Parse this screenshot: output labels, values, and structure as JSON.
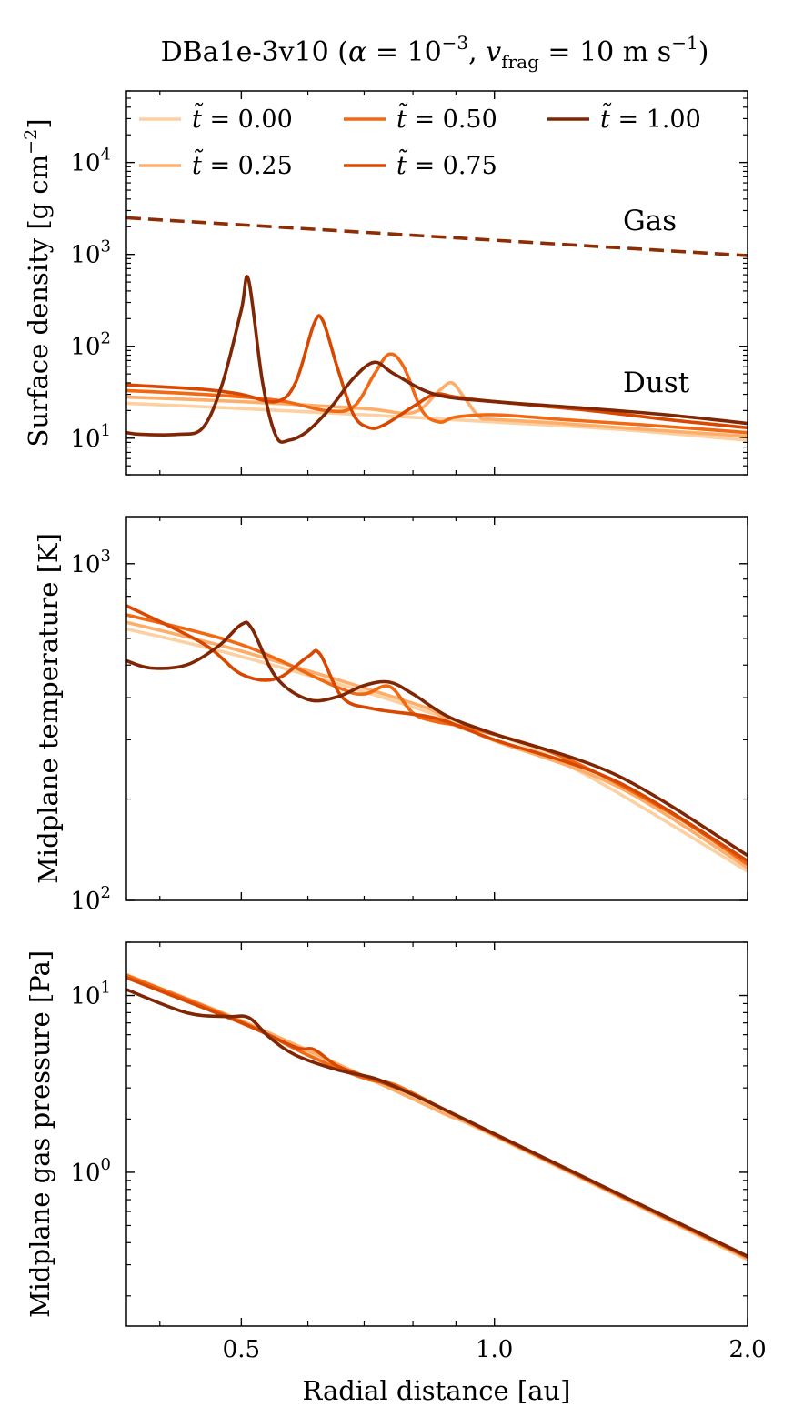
{
  "title": "DBa1e-3v10 (α = 10⁻³, v_frag = 10 m s⁻¹)",
  "title_parts": {
    "main": "DBa1e-3v10 (",
    "alpha": "α",
    "alpha_eq": " = 10",
    "alpha_exp": "−3",
    "sep": ", ",
    "v": "v",
    "v_sub": "frag",
    "v_eq": " = 10 m s",
    "v_exp": "−1",
    "close": ")"
  },
  "colors": {
    "t000": "#fdd0a2",
    "t025": "#fdae6b",
    "t050": "#f16913",
    "t075": "#d94801",
    "t100": "#7f2704",
    "gas": "#8c2d04"
  },
  "legend": [
    {
      "symbol": "t̃",
      "eq": " = ",
      "value": "0.00",
      "color_key": "t000"
    },
    {
      "symbol": "t̃",
      "eq": " = ",
      "value": "0.25",
      "color_key": "t025"
    },
    {
      "symbol": "t̃",
      "eq": " = ",
      "value": "0.50",
      "color_key": "t050"
    },
    {
      "symbol": "t̃",
      "eq": " = ",
      "value": "0.75",
      "color_key": "t075"
    },
    {
      "symbol": "t̃",
      "eq": " = ",
      "value": "1.00",
      "color_key": "t100"
    }
  ],
  "annotations": {
    "gas": "Gas",
    "dust": "Dust"
  },
  "xaxis": {
    "label": "Radial distance [au]",
    "scale": "log",
    "range": [
      0.365,
      2.0
    ],
    "ticks": [
      {
        "value": 0.5,
        "label": "0.5"
      },
      {
        "value": 1.0,
        "label": "1.0"
      },
      {
        "value": 2.0,
        "label": "2.0"
      }
    ]
  },
  "chart_data": [
    {
      "type": "line",
      "ylabel": "Surface density [g cm⁻²]",
      "ylabel_parts": {
        "main": "Surface density [g cm",
        "exp": "−2",
        "close": "]"
      },
      "yscale": "log",
      "ylim": [
        4.0,
        60000
      ],
      "yticks": [
        {
          "value": 10,
          "base": "10",
          "exp": "1"
        },
        {
          "value": 100,
          "base": "10",
          "exp": "2"
        },
        {
          "value": 1000,
          "base": "10",
          "exp": "3"
        },
        {
          "value": 10000,
          "base": "10",
          "exp": "4"
        }
      ],
      "series": [
        {
          "name": "Gas",
          "color_key": "gas",
          "dashed": true,
          "x": [
            0.365,
            2.0
          ],
          "values": [
            2500,
            970
          ]
        },
        {
          "name": "t̃ = 0.00",
          "color_key": "t000",
          "x": [
            0.365,
            0.5,
            0.7,
            1.0,
            1.4,
            2.0
          ],
          "values": [
            24,
            21,
            18,
            15,
            12.5,
            9.5
          ]
        },
        {
          "name": "t̃ = 0.25",
          "color_key": "t025",
          "x": [
            0.365,
            0.5,
            0.7,
            0.8,
            0.86,
            0.89,
            0.92,
            0.96,
            1.0,
            1.2,
            1.5,
            2.0
          ],
          "values": [
            28,
            25,
            21,
            19,
            33,
            40,
            28,
            17,
            16,
            14.5,
            12.5,
            10.5
          ]
        },
        {
          "name": "t̃ = 0.50",
          "color_key": "t050",
          "x": [
            0.365,
            0.45,
            0.55,
            0.63,
            0.68,
            0.72,
            0.75,
            0.78,
            0.82,
            0.86,
            0.9,
            1.0,
            1.2,
            1.5,
            2.0
          ],
          "values": [
            33,
            30,
            26,
            20,
            22,
            50,
            82,
            60,
            20,
            15,
            17,
            18,
            16,
            14,
            11.5
          ]
        },
        {
          "name": "t̃ = 0.75",
          "color_key": "t075",
          "x": [
            0.365,
            0.45,
            0.5,
            0.55,
            0.58,
            0.61,
            0.625,
            0.65,
            0.68,
            0.71,
            0.74,
            0.8,
            0.85,
            0.9,
            1.0,
            1.3,
            1.6,
            2.0
          ],
          "values": [
            38,
            34,
            30,
            25,
            40,
            175,
            190,
            60,
            18,
            13,
            14,
            22,
            30,
            28,
            25,
            20,
            16,
            13
          ]
        },
        {
          "name": "t̃ = 1.00",
          "color_key": "t100",
          "x": [
            0.365,
            0.38,
            0.42,
            0.45,
            0.475,
            0.5,
            0.51,
            0.53,
            0.55,
            0.57,
            0.6,
            0.64,
            0.68,
            0.72,
            0.76,
            0.85,
            1.0,
            1.3,
            1.6,
            2.0
          ],
          "values": [
            11.5,
            11,
            11,
            13,
            40,
            250,
            530,
            40,
            10.5,
            9.5,
            12,
            22,
            45,
            67,
            50,
            30,
            25,
            21,
            18,
            14.5
          ]
        }
      ]
    },
    {
      "type": "line",
      "ylabel": "Midplane temperature [K]",
      "yscale": "log",
      "ylim": [
        100,
        1380
      ],
      "yticks": [
        {
          "value": 100,
          "base": "10",
          "exp": "2"
        },
        {
          "value": 1000,
          "base": "10",
          "exp": "3"
        }
      ],
      "series": [
        {
          "name": "t̃ = 0.00",
          "color_key": "t000",
          "x": [
            0.365,
            0.5,
            0.8,
            1.2,
            2.0
          ],
          "values": [
            640,
            530,
            375,
            258,
            122
          ]
        },
        {
          "name": "t̃ = 0.25",
          "color_key": "t025",
          "x": [
            0.365,
            0.5,
            0.8,
            0.86,
            0.9,
            0.95,
            1.0,
            1.4,
            2.0
          ],
          "values": [
            670,
            550,
            385,
            355,
            330,
            315,
            298,
            218,
            125
          ]
        },
        {
          "name": "t̃ = 0.50",
          "color_key": "t050",
          "x": [
            0.365,
            0.5,
            0.65,
            0.7,
            0.75,
            0.8,
            0.85,
            0.95,
            1.2,
            1.6,
            2.0
          ],
          "values": [
            705,
            575,
            430,
            410,
            432,
            360,
            340,
            322,
            268,
            185,
            128
          ]
        },
        {
          "name": "t̃ = 0.75",
          "color_key": "t075",
          "x": [
            0.365,
            0.45,
            0.5,
            0.55,
            0.6,
            0.62,
            0.66,
            0.72,
            0.85,
            1.0,
            1.4,
            2.0
          ],
          "values": [
            750,
            580,
            470,
            455,
            530,
            540,
            400,
            370,
            348,
            300,
            225,
            131
          ]
        },
        {
          "name": "t̃ = 1.00",
          "color_key": "t100",
          "x": [
            0.365,
            0.39,
            0.43,
            0.47,
            0.5,
            0.515,
            0.55,
            0.6,
            0.65,
            0.7,
            0.75,
            0.8,
            0.88,
            1.0,
            1.4,
            2.0
          ],
          "values": [
            515,
            490,
            500,
            570,
            660,
            640,
            460,
            395,
            402,
            435,
            445,
            410,
            352,
            312,
            235,
            136
          ]
        }
      ]
    },
    {
      "type": "line",
      "ylabel": "Midplane gas pressure [Pa]",
      "yscale": "log",
      "ylim": [
        0.135,
        20
      ],
      "yticks": [
        {
          "value": 1,
          "base": "10",
          "exp": "0"
        },
        {
          "value": 10,
          "base": "10",
          "exp": "1"
        }
      ],
      "series": [
        {
          "name": "t̃ = 0.00",
          "color_key": "t000",
          "x": [
            0.365,
            0.5,
            0.75,
            1.0,
            2.0
          ],
          "values": [
            13.2,
            7.0,
            3.0,
            1.6,
            0.32
          ]
        },
        {
          "name": "t̃ = 0.25",
          "color_key": "t025",
          "x": [
            0.365,
            0.5,
            0.75,
            0.88,
            1.0,
            2.0
          ],
          "values": [
            13.0,
            7.2,
            3.0,
            2.1,
            1.62,
            0.325
          ]
        },
        {
          "name": "t̃ = 0.50",
          "color_key": "t050",
          "x": [
            0.365,
            0.5,
            0.6,
            0.7,
            0.75,
            0.8,
            1.0,
            2.0
          ],
          "values": [
            13.0,
            7.1,
            4.6,
            3.4,
            3.2,
            2.8,
            1.63,
            0.33
          ]
        },
        {
          "name": "t̃ = 0.75",
          "color_key": "t075",
          "x": [
            0.365,
            0.5,
            0.58,
            0.61,
            0.65,
            0.7,
            0.8,
            1.0,
            2.0
          ],
          "values": [
            12.6,
            7.0,
            5.1,
            4.95,
            4.0,
            3.5,
            2.75,
            1.64,
            0.333
          ]
        },
        {
          "name": "t̃ = 1.00",
          "color_key": "t100",
          "x": [
            0.365,
            0.43,
            0.48,
            0.51,
            0.54,
            0.58,
            0.65,
            0.72,
            0.78,
            0.85,
            1.0,
            2.0
          ],
          "values": [
            10.8,
            8.0,
            7.6,
            7.5,
            5.8,
            4.6,
            3.8,
            3.4,
            2.9,
            2.4,
            1.65,
            0.335
          ]
        }
      ]
    }
  ]
}
